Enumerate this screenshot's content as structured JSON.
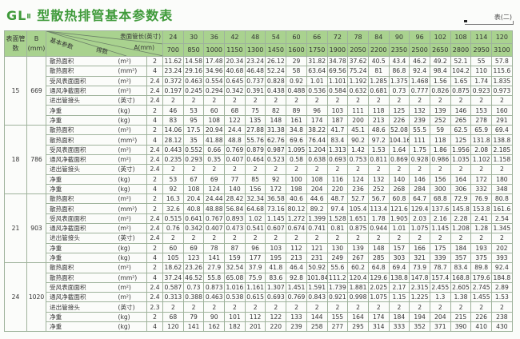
{
  "title": {
    "main": "GL",
    "sub": "Ⅱ",
    "rest": "型散热排管基本参数表"
  },
  "table_tag": "表(二)",
  "header": {
    "col_tubes": "表面管数",
    "col_b": "B",
    "col_b_unit": "(mm)",
    "diag_length": "表面管长(英寸)",
    "diag_a": "A(mm)",
    "diag_rows": "排数",
    "diag_params": "基本参数",
    "lengths": [
      "24",
      "30",
      "36",
      "42",
      "48",
      "54",
      "60",
      "66",
      "72",
      "78",
      "84",
      "90",
      "96",
      "102",
      "108",
      "114",
      "120"
    ],
    "a_mm": [
      "700",
      "850",
      "1000",
      "1150",
      "1300",
      "1450",
      "1600",
      "1750",
      "1900",
      "2050",
      "2200",
      "2350",
      "2500",
      "2650",
      "2800",
      "2950",
      "3100"
    ]
  },
  "colors": {
    "header_bg": "#a9d28f",
    "title": "#3f9a3a",
    "border": "#9fb39c"
  },
  "blocks": [
    {
      "tubes": "15",
      "b": "669",
      "rows": [
        {
          "label": "散热面积",
          "unit": "(m²)",
          "factor": "2",
          "values": [
            "11.62",
            "14.58",
            "17.48",
            "20.34",
            "23.24",
            "26.12",
            "29",
            "31.82",
            "34.78",
            "37.62",
            "40.5",
            "43.4",
            "46.2",
            "49.2",
            "52.1",
            "55",
            "57.8"
          ]
        },
        {
          "label": "散热面积",
          "unit": "(mm²)",
          "factor": "4",
          "values": [
            "23.24",
            "29.16",
            "34.96",
            "40.68",
            "46.48",
            "52.24",
            "58",
            "63.64",
            "69.56",
            "75.24",
            "81",
            "86.8",
            "92.4",
            "98.4",
            "104.2",
            "110",
            "115.6"
          ]
        },
        {
          "label": "受风表面面积",
          "unit": "(m²)",
          "factor": "2.4",
          "values": [
            "0.372",
            "0.463",
            "0.554",
            "0.645",
            "0.737",
            "0.828",
            "0.92",
            "1.01",
            "1.101",
            "1.192",
            "1.285",
            "1.375",
            "1.468",
            "1.56",
            "1.65",
            "1.74",
            "1.835"
          ]
        },
        {
          "label": "通风净截面积",
          "unit": "(m²)",
          "factor": "2.4",
          "values": [
            "0.197",
            "0.245",
            "0.294",
            "0.342",
            "0.391",
            "0.438",
            "0.488",
            "0.536",
            "0.584",
            "0.632",
            "0.681",
            "0.73",
            "0.777",
            "0.826",
            "0.875",
            "0.923",
            "0.973"
          ]
        },
        {
          "label": "进出管接头",
          "unit": "(英寸)",
          "factor": "2.4",
          "values": [
            "2",
            "2",
            "2",
            "2",
            "2",
            "2",
            "2",
            "2",
            "2",
            "2",
            "2",
            "2",
            "2",
            "2",
            "2",
            "2",
            "2"
          ]
        },
        {
          "label": "净重",
          "unit": "(kg)",
          "factor": "2",
          "values": [
            "46",
            "53",
            "60",
            "68",
            "75",
            "82",
            "89",
            "96",
            "103",
            "111",
            "118",
            "125",
            "132",
            "139",
            "146",
            "153",
            "160"
          ]
        },
        {
          "label": "净重",
          "unit": "(kg)",
          "factor": "4",
          "values": [
            "83",
            "95",
            "108",
            "122",
            "135",
            "148",
            "161",
            "174",
            "187",
            "200",
            "213",
            "226",
            "239",
            "252",
            "265",
            "278",
            "291"
          ]
        }
      ]
    },
    {
      "tubes": "18",
      "b": "786",
      "rows": [
        {
          "label": "散热面积",
          "unit": "(m²)",
          "factor": "2",
          "values": [
            "14.06",
            "17.5",
            "20.94",
            "24.4",
            "27.88",
            "31.38",
            "34.8",
            "38.22",
            "41.7",
            "45.1",
            "48.6",
            "52.08",
            "55.5",
            "59",
            "62.5",
            "65.9",
            "69.4"
          ]
        },
        {
          "label": "散热面积",
          "unit": "(mm²)",
          "factor": "4",
          "values": [
            "28.12",
            "35",
            "41.88",
            "48.8",
            "55.76",
            "62.76",
            "69.6",
            "76.44",
            "83.4",
            "90.2",
            "97.2",
            "104.16",
            "111",
            "118",
            "125",
            "131.8",
            "138.8"
          ]
        },
        {
          "label": "受风表面面积",
          "unit": "(m²)",
          "factor": "2.4",
          "values": [
            "0.443",
            "0.552",
            "0.66",
            "0.769",
            "0.879",
            "0.987",
            "1.095",
            "1.204",
            "1.313",
            "1.42",
            "1.53",
            "1.64",
            "1.75",
            "1.86",
            "1.956",
            "2.08",
            "2.185"
          ]
        },
        {
          "label": "通风净截面积",
          "unit": "(m²)",
          "factor": "2.4",
          "values": [
            "0.235",
            "0.293",
            "0.35",
            "0.407",
            "0.464",
            "0.523",
            "0.58",
            "0.638",
            "0.693",
            "0.753",
            "0.811",
            "0.869",
            "0.928",
            "0.986",
            "1.035",
            "1.102",
            "1.158"
          ]
        },
        {
          "label": "进出管接头",
          "unit": "(英寸)",
          "factor": "2.4",
          "values": [
            "2",
            "2",
            "2",
            "2",
            "2",
            "2",
            "2",
            "2",
            "2",
            "2",
            "2",
            "2",
            "2",
            "2",
            "2",
            "2",
            "2"
          ]
        },
        {
          "label": "净重",
          "unit": "(kg)",
          "factor": "2",
          "values": [
            "53",
            "67",
            "69",
            "77",
            "85",
            "92",
            "100",
            "108",
            "116",
            "124",
            "132",
            "140",
            "146",
            "156",
            "164",
            "172",
            "180"
          ]
        },
        {
          "label": "净重",
          "unit": "(kg)",
          "factor": "4",
          "values": [
            "92",
            "108",
            "124",
            "140",
            "156",
            "172",
            "198",
            "204",
            "220",
            "236",
            "252",
            "268",
            "284",
            "300",
            "306",
            "332",
            "348"
          ]
        }
      ]
    },
    {
      "tubes": "21",
      "b": "903",
      "rows": [
        {
          "label": "散热面积",
          "unit": "(m²)",
          "factor": "2",
          "values": [
            "16.3",
            "20.4",
            "24.44",
            "28.42",
            "32.34",
            "36.58",
            "40.6",
            "44.6",
            "48.7",
            "52.7",
            "56.7",
            "60.8",
            "64.7",
            "68.8",
            "72.9",
            "76.9",
            "80.8"
          ]
        },
        {
          "label": "散热面积",
          "unit": "(mm²)",
          "factor": "2",
          "values": [
            "32.6",
            "40.8",
            "48.88",
            "56.84",
            "64.68",
            "73.16",
            "80.12",
            "89.2",
            "97.4",
            "105.4",
            "113.4",
            "121.6",
            "129.4",
            "137.6",
            "145.8",
            "153.8",
            "161.6"
          ]
        },
        {
          "label": "受风表面面积",
          "unit": "(m²)",
          "factor": "2.4",
          "values": [
            "0.515",
            "0.641",
            "0.767",
            "0.893",
            "1.02",
            "1.145",
            "1.272",
            "1.399",
            "1.528",
            "1.651",
            "1.78",
            "1.905",
            "2.03",
            "2.16",
            "2.28",
            "2.41",
            "2.54"
          ]
        },
        {
          "label": "通风净截面积",
          "unit": "(m²)",
          "factor": "2.4",
          "values": [
            "0.76",
            "0.342",
            "0.407",
            "0.473",
            "0.541",
            "0.607",
            "0.674",
            "0.741",
            "0.81",
            "0.875",
            "0.944",
            "1.01",
            "1.075",
            "1.145",
            "1.208",
            "1.28",
            "1.345"
          ]
        },
        {
          "label": "进出管接头",
          "unit": "(英寸)",
          "factor": "2.4",
          "values": [
            "2",
            "2",
            "2",
            "2",
            "2",
            "2",
            "2",
            "2",
            "2",
            "2",
            "2",
            "2",
            "2",
            "2",
            "2",
            "2",
            "2"
          ]
        },
        {
          "label": "净重",
          "unit": "(kg)",
          "factor": "2",
          "values": [
            "60",
            "69",
            "78",
            "87",
            "96",
            "103",
            "112",
            "121",
            "130",
            "139",
            "148",
            "157",
            "166",
            "175",
            "184",
            "193",
            "202"
          ]
        },
        {
          "label": "净重",
          "unit": "(kg)",
          "factor": "4",
          "values": [
            "105",
            "123",
            "141",
            "159",
            "177",
            "195",
            "213",
            "231",
            "249",
            "267",
            "285",
            "303",
            "321",
            "339",
            "357",
            "375",
            "393"
          ]
        }
      ]
    },
    {
      "tubes": "24",
      "b": "1020",
      "rows": [
        {
          "label": "散热面积",
          "unit": "(m²)",
          "factor": "2",
          "values": [
            "18.62",
            "23.26",
            "27.9",
            "32.54",
            "37.9",
            "41.8",
            "46.4",
            "50.92",
            "55.6",
            "60.2",
            "64.8",
            "69.4",
            "73.9",
            "78.7",
            "83.4",
            "89.8",
            "92.4"
          ]
        },
        {
          "label": "散热面积",
          "unit": "(mm²)",
          "factor": "4",
          "values": [
            "37.24",
            "46.52",
            "55.8",
            "65.08",
            "75.9",
            "83.6",
            "92.8",
            "101.84",
            "111.2",
            "120.4",
            "129.6",
            "138.8",
            "147.8",
            "157.4",
            "168.8",
            "179.6",
            "184.8"
          ]
        },
        {
          "label": "受风表面面积",
          "unit": "(m²)",
          "factor": "2.4",
          "values": [
            "0.587",
            "0.73",
            "0.873",
            "1.016",
            "1.161",
            "1.307",
            "1.451",
            "1.591",
            "1.739",
            "1.881",
            "2.025",
            "2.17",
            "2.315",
            "2.455",
            "2.605",
            "2.745",
            "2.89"
          ]
        },
        {
          "label": "通风净截面积",
          "unit": "(m²)",
          "factor": "2.4",
          "values": [
            "0.313",
            "0.388",
            "0.463",
            "0.538",
            "0.615",
            "0.693",
            "0.769",
            "0.843",
            "0.921",
            "0.998",
            "1.075",
            "1.15",
            "1.225",
            "1.3",
            "1.38",
            "1.455",
            "1.53"
          ]
        },
        {
          "label": "进出管接头",
          "unit": "(英寸)",
          "factor": "2.3",
          "values": [
            "2",
            "2",
            "2",
            "2",
            "2",
            "2",
            "2",
            "2",
            "2",
            "2",
            "2",
            "2",
            "2",
            "2",
            "2",
            "2",
            "2"
          ]
        },
        {
          "label": "净重",
          "unit": "(kg)",
          "factor": "2",
          "values": [
            "68",
            "79",
            "90",
            "101",
            "112",
            "122",
            "133",
            "144",
            "155",
            "164",
            "174",
            "184",
            "194",
            "204",
            "215",
            "226",
            "238"
          ]
        },
        {
          "label": "净重",
          "unit": "(kg)",
          "factor": "4",
          "values": [
            "120",
            "141",
            "162",
            "182",
            "201",
            "220",
            "239",
            "258",
            "277",
            "295",
            "314",
            "333",
            "352",
            "371",
            "390",
            "410",
            "430"
          ]
        }
      ]
    }
  ]
}
